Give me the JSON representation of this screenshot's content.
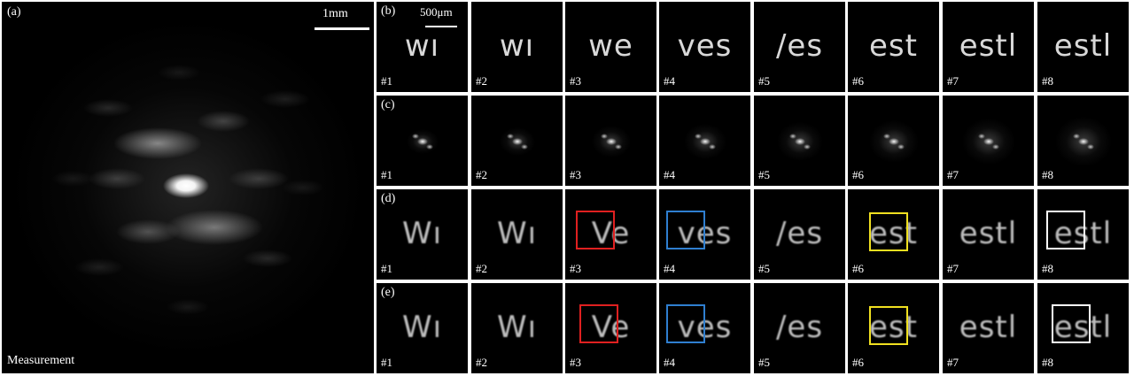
{
  "panel_a": {
    "letter": "(a)",
    "scale_label": "1mm",
    "caption": "Measurement"
  },
  "rows": [
    {
      "letter": "(b)",
      "kind": "text",
      "scale_label": "500μm",
      "cells": [
        {
          "num": "#1",
          "word": "wı"
        },
        {
          "num": "#2",
          "word": "wı"
        },
        {
          "num": "#3",
          "word": "we"
        },
        {
          "num": "#4",
          "word": "ves"
        },
        {
          "num": "#5",
          "word": "/es"
        },
        {
          "num": "#6",
          "word": "est"
        },
        {
          "num": "#7",
          "word": "estl"
        },
        {
          "num": "#8",
          "word": "estl"
        }
      ]
    },
    {
      "letter": "(c)",
      "kind": "diffraction",
      "cells": [
        {
          "num": "#1"
        },
        {
          "num": "#2"
        },
        {
          "num": "#3"
        },
        {
          "num": "#4"
        },
        {
          "num": "#5"
        },
        {
          "num": "#6"
        },
        {
          "num": "#7"
        },
        {
          "num": "#8"
        }
      ]
    },
    {
      "letter": "(d)",
      "kind": "recon",
      "cells": [
        {
          "num": "#1",
          "word": "Wı"
        },
        {
          "num": "#2",
          "word": "Wı"
        },
        {
          "num": "#3",
          "word": "Ve",
          "roi": "#e02020"
        },
        {
          "num": "#4",
          "word": "ves",
          "roi": "#2f7fd0"
        },
        {
          "num": "#5",
          "word": "/es"
        },
        {
          "num": "#6",
          "word": "est",
          "roi": "#f0e020"
        },
        {
          "num": "#7",
          "word": "estl"
        },
        {
          "num": "#8",
          "word": "estl",
          "roi": "#ffffff"
        }
      ]
    },
    {
      "letter": "(e)",
      "kind": "recon",
      "cells": [
        {
          "num": "#1",
          "word": "Wı"
        },
        {
          "num": "#2",
          "word": "Wı"
        },
        {
          "num": "#3",
          "word": "Ve",
          "roi": "#e02020"
        },
        {
          "num": "#4",
          "word": "ves",
          "roi": "#2f7fd0"
        },
        {
          "num": "#5",
          "word": "/es"
        },
        {
          "num": "#6",
          "word": "est",
          "roi": "#f0e020"
        },
        {
          "num": "#7",
          "word": "estl"
        },
        {
          "num": "#8",
          "word": "estl",
          "roi": "#ffffff"
        }
      ]
    }
  ]
}
